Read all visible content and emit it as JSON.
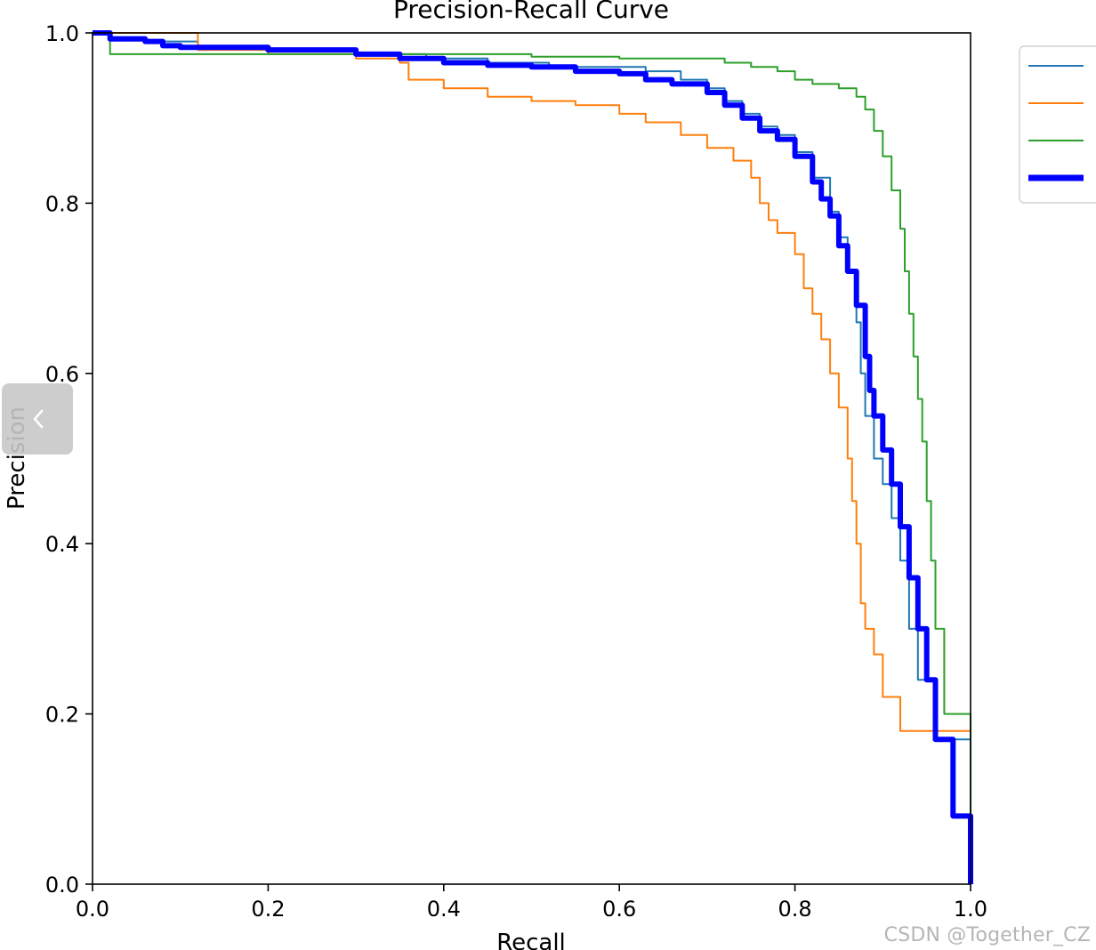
{
  "chart_data": {
    "type": "line",
    "title": "Precision-Recall Curve",
    "xlabel": "Recall",
    "ylabel": "Precision",
    "xlim": [
      0,
      1
    ],
    "ylim": [
      0,
      1
    ],
    "xticks": [
      "0.0",
      "0.2",
      "0.4",
      "0.6",
      "0.8",
      "1.0"
    ],
    "yticks": [
      "0.0",
      "0.2",
      "0.4",
      "0.6",
      "0.8",
      "1.0"
    ],
    "grid": false,
    "legend_position": "upper right, outside plot",
    "series": [
      {
        "color": "#1f77b4",
        "line_width": "thin",
        "x": [
          0,
          0.02,
          0.06,
          0.12,
          0.2,
          0.3,
          0.38,
          0.45,
          0.52,
          0.58,
          0.63,
          0.67,
          0.7,
          0.72,
          0.74,
          0.76,
          0.78,
          0.8,
          0.82,
          0.84,
          0.85,
          0.86,
          0.87,
          0.875,
          0.88,
          0.89,
          0.9,
          0.91,
          0.92,
          0.93,
          0.94,
          0.96,
          1.0
        ],
        "y": [
          1.0,
          0.995,
          0.99,
          0.985,
          0.98,
          0.975,
          0.97,
          0.965,
          0.96,
          0.96,
          0.955,
          0.945,
          0.935,
          0.92,
          0.905,
          0.89,
          0.88,
          0.86,
          0.83,
          0.79,
          0.76,
          0.72,
          0.66,
          0.6,
          0.55,
          0.5,
          0.47,
          0.43,
          0.38,
          0.3,
          0.24,
          0.17,
          0.0
        ]
      },
      {
        "color": "#ff7f0e",
        "line_width": "thin",
        "x": [
          0,
          0.05,
          0.08,
          0.12,
          0.2,
          0.3,
          0.35,
          0.36,
          0.4,
          0.45,
          0.5,
          0.55,
          0.6,
          0.63,
          0.67,
          0.7,
          0.73,
          0.75,
          0.76,
          0.77,
          0.78,
          0.8,
          0.81,
          0.82,
          0.83,
          0.84,
          0.85,
          0.86,
          0.865,
          0.87,
          0.875,
          0.88,
          0.89,
          0.9,
          0.92,
          1.0
        ],
        "y": [
          1.0,
          1.0,
          1.0,
          0.98,
          0.975,
          0.97,
          0.965,
          0.945,
          0.935,
          0.925,
          0.92,
          0.915,
          0.905,
          0.895,
          0.88,
          0.865,
          0.85,
          0.83,
          0.8,
          0.78,
          0.765,
          0.74,
          0.7,
          0.67,
          0.64,
          0.6,
          0.56,
          0.5,
          0.45,
          0.4,
          0.33,
          0.3,
          0.27,
          0.22,
          0.18,
          0.0
        ]
      },
      {
        "color": "#2ca02c",
        "line_width": "thin",
        "x": [
          0,
          0.02,
          0.1,
          0.2,
          0.3,
          0.4,
          0.5,
          0.6,
          0.65,
          0.7,
          0.72,
          0.75,
          0.78,
          0.8,
          0.82,
          0.85,
          0.87,
          0.88,
          0.89,
          0.9,
          0.91,
          0.92,
          0.925,
          0.93,
          0.935,
          0.94,
          0.945,
          0.95,
          0.955,
          0.96,
          0.97,
          1.0
        ],
        "y": [
          1.0,
          0.975,
          0.975,
          0.975,
          0.975,
          0.975,
          0.972,
          0.97,
          0.97,
          0.97,
          0.965,
          0.96,
          0.955,
          0.945,
          0.94,
          0.935,
          0.925,
          0.91,
          0.885,
          0.855,
          0.815,
          0.77,
          0.72,
          0.67,
          0.62,
          0.57,
          0.52,
          0.45,
          0.38,
          0.3,
          0.2,
          0.0
        ]
      },
      {
        "color": "#0000ff",
        "line_width": "thick",
        "x": [
          0,
          0.02,
          0.06,
          0.08,
          0.1,
          0.2,
          0.3,
          0.35,
          0.4,
          0.45,
          0.5,
          0.55,
          0.6,
          0.63,
          0.66,
          0.7,
          0.72,
          0.74,
          0.76,
          0.78,
          0.8,
          0.82,
          0.83,
          0.84,
          0.85,
          0.86,
          0.87,
          0.88,
          0.885,
          0.89,
          0.9,
          0.91,
          0.92,
          0.93,
          0.94,
          0.95,
          0.96,
          0.98,
          1.0
        ],
        "y": [
          1.0,
          0.993,
          0.99,
          0.985,
          0.983,
          0.98,
          0.975,
          0.97,
          0.965,
          0.962,
          0.96,
          0.955,
          0.952,
          0.945,
          0.94,
          0.93,
          0.915,
          0.9,
          0.885,
          0.875,
          0.855,
          0.825,
          0.805,
          0.785,
          0.75,
          0.72,
          0.68,
          0.62,
          0.58,
          0.55,
          0.51,
          0.47,
          0.42,
          0.36,
          0.3,
          0.24,
          0.17,
          0.08,
          0.0
        ]
      }
    ]
  },
  "page": {
    "watermark": "CSDN @Together_CZ",
    "side_tab_icon": "chevron-left-icon"
  }
}
